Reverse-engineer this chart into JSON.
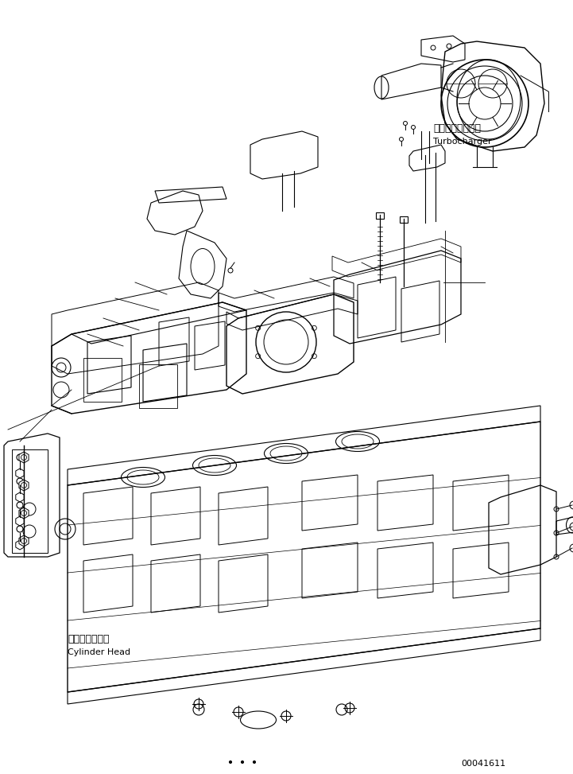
{
  "title": "",
  "bg_color": "#ffffff",
  "line_color": "#000000",
  "label_turbocharger_ja": "ターボチャージャ",
  "label_turbocharger_en": "Turbocharger",
  "label_cylinder_ja": "シリンダヘッド",
  "label_cylinder_en": "Cylinder Head",
  "part_number": "00041611",
  "figsize": [
    7.21,
    9.73
  ],
  "dpi": 100
}
